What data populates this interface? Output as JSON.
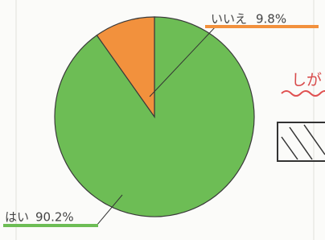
{
  "chart_data": {
    "type": "pie",
    "categories": [
      "はい",
      "いいえ"
    ],
    "values": [
      90.2,
      9.8
    ],
    "value_labels": [
      "90.2%",
      "9.8%"
    ],
    "colors": [
      "#6dbd55",
      "#f2913d"
    ],
    "annotation": "しが"
  }
}
